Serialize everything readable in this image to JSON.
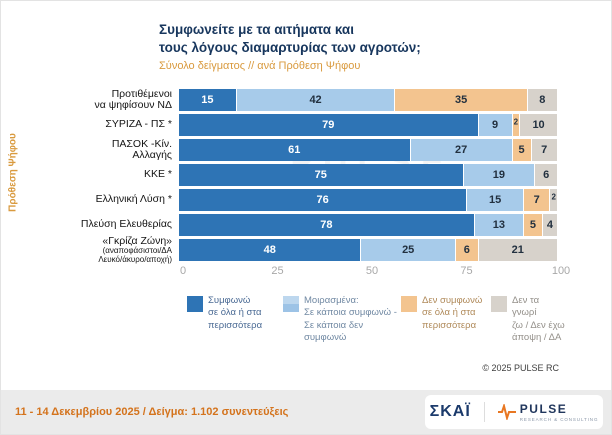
{
  "header": {
    "title_line1": "Συμφωνείτε με τα αιτήματα και",
    "title_line2": "τους λόγους διαμαρτυρίας των αγροτών;",
    "subtitle": "Σύνολο δείγματος // ανά Πρόθεση Ψήφου"
  },
  "y_axis_label": "Πρόθεση Ψήφου",
  "watermark": "PULSE",
  "chart_data": {
    "type": "bar",
    "stacked": true,
    "orientation": "horizontal",
    "xlim": [
      0,
      100
    ],
    "x_ticks": [
      "0",
      "25",
      "50",
      "75",
      "100"
    ],
    "categories": [
      "Προτιθέμενοι να ψηφίσουν ΝΔ",
      "ΣΥΡΙΖΑ - ΠΣ *",
      "ΠΑΣΟΚ -Κίν. Αλλαγής",
      "ΚΚΕ *",
      "Ελληνική Λύση *",
      "Πλεύση Ελευθερίας",
      "«Γκρίζα Ζώνη» (αναποφάσιστοι/ΔΑ Λευκό/άκυρο/αποχή)"
    ],
    "category_label_lines": [
      [
        "Προτιθέμενοι",
        "να ψηφίσουν ΝΔ"
      ],
      [
        "ΣΥΡΙΖΑ - ΠΣ *"
      ],
      [
        "ΠΑΣΟΚ -Κίν.",
        "Αλλαγής"
      ],
      [
        "ΚΚΕ *"
      ],
      [
        "Ελληνική Λύση *"
      ],
      [
        "Πλεύση Ελευθερίας"
      ],
      [
        "«Γκρίζα Ζώνη»",
        "(αναποφάσιστοι/ΔΑ",
        "Λευκό/άκυρο/αποχή)"
      ]
    ],
    "series": [
      {
        "name": "Συμφωνώ σε όλα ή στα περισσότερα",
        "color": "#2E74B5",
        "label_color": "#ffffff",
        "values": [
          15,
          79,
          61,
          75,
          76,
          78,
          48
        ]
      },
      {
        "name": "Μοιρασμένα: Σε κάποια συμφωνώ - Σε κάποια δεν συμφωνώ",
        "color": "#A7CBEA",
        "label_color": "#22303f",
        "values": [
          42,
          9,
          27,
          19,
          15,
          13,
          25
        ]
      },
      {
        "name": "Δεν συμφωνώ σε όλα ή στα περισσότερα",
        "color": "#F3C48F",
        "label_color": "#22303f",
        "values": [
          35,
          2,
          5,
          0,
          7,
          5,
          6
        ]
      },
      {
        "name": "Δεν τα γνωρίζω / Δεν έχω άποψη / ΔΑ",
        "color": "#D7D2CB",
        "label_color": "#22303f",
        "values": [
          8,
          10,
          7,
          6,
          2,
          4,
          21
        ]
      }
    ]
  },
  "legend": {
    "items": [
      {
        "swatch": [
          "#2E74B5"
        ],
        "text_color": "#4a6a94",
        "lines": [
          "Συμφωνώ",
          "σε όλα ή στα",
          "περισσότερα"
        ]
      },
      {
        "swatch": [
          "#BDD7EE",
          "#9DC3E6"
        ],
        "text_color": "#7189a3",
        "lines": [
          "Μοιρασμένα:",
          "Σε κάποια συμφωνώ -",
          "Σε κάποια δεν συμφωνώ"
        ]
      },
      {
        "swatch": [
          "#F3C48F"
        ],
        "text_color": "#b08a5a",
        "lines": [
          "Δεν συμφωνώ",
          "σε όλα ή στα",
          "περισσότερα"
        ]
      },
      {
        "swatch": [
          "#D7D2CB"
        ],
        "text_color": "#94908a",
        "lines": [
          "Δεν τα γνωρί",
          "ζω / Δεν έχω",
          "άποψη / ΔΑ"
        ]
      }
    ]
  },
  "copyright": "© 2025  PULSE RC",
  "footer": {
    "fieldwork": "11 - 14 Δεκεμβρίου 2025  /  Δείγμα:  1.102 συνεντεύξεις",
    "skai_logo_text": "ΣΚΑΪ",
    "pulse_logo_text": "PULSE",
    "pulse_logo_sub": "RESEARCH & CONSULTING"
  }
}
